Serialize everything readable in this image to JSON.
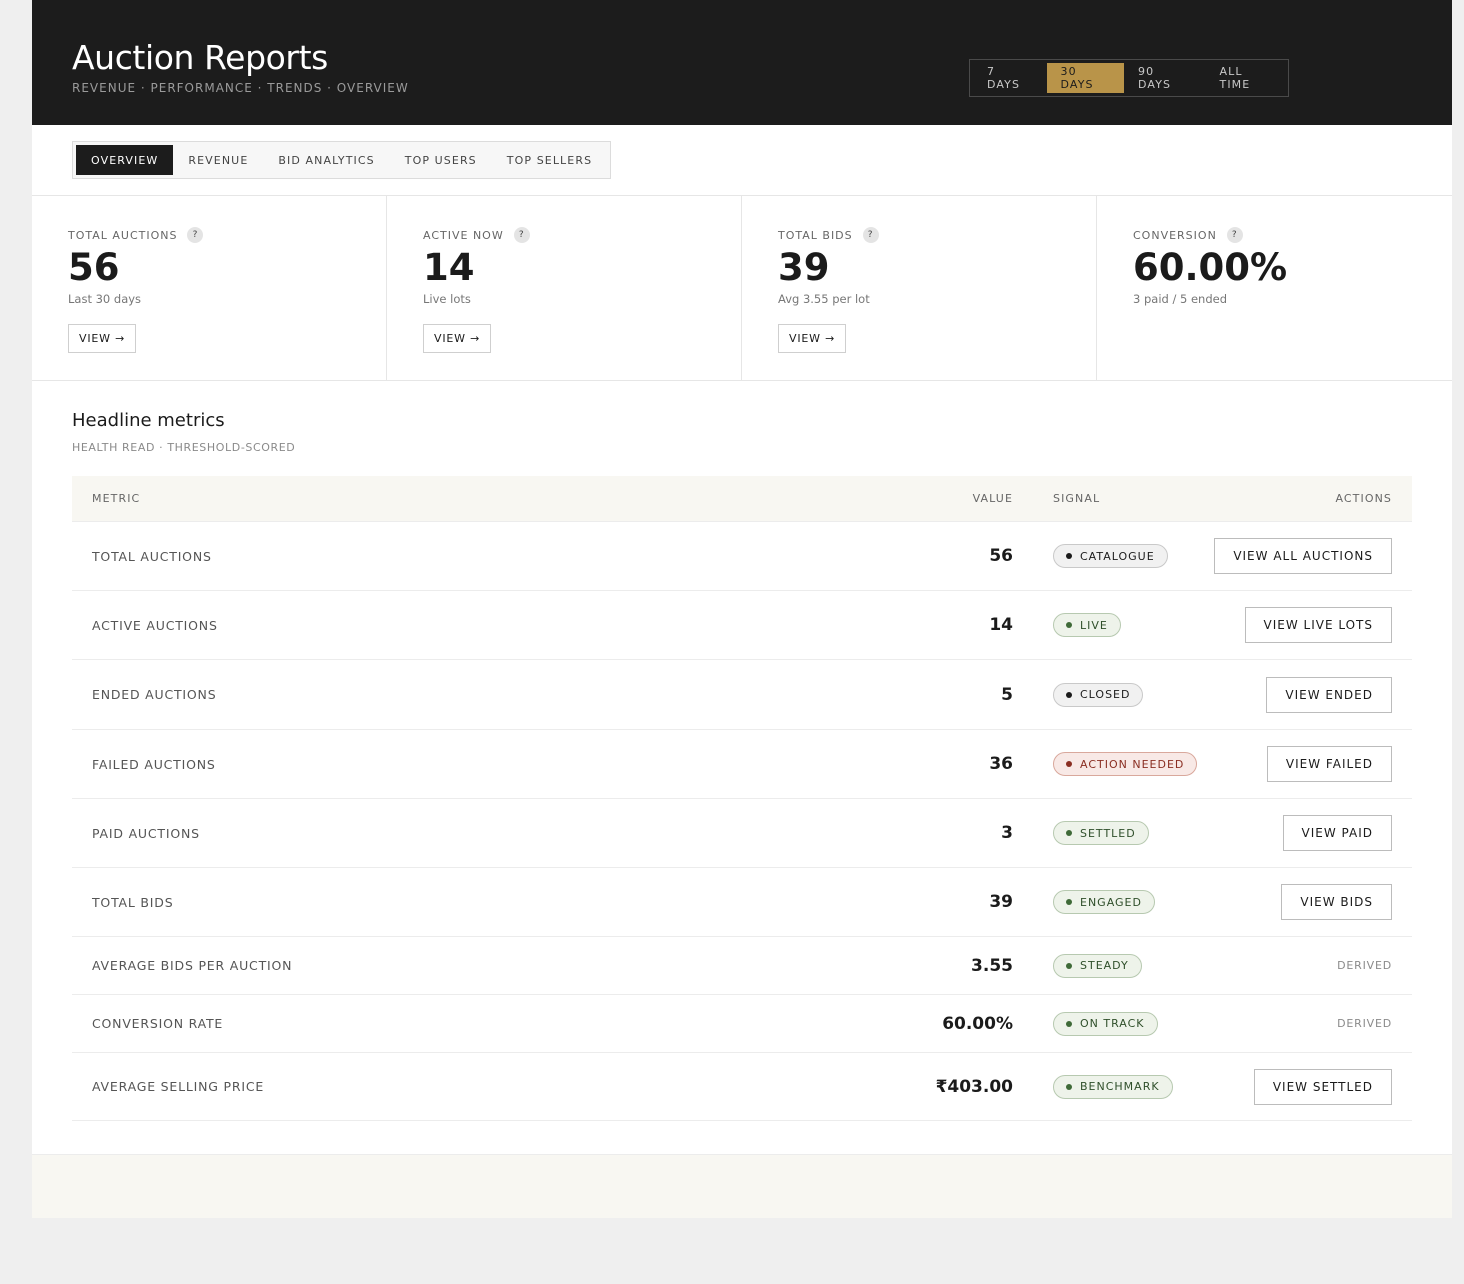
{
  "header": {
    "title": "Auction Reports",
    "subtitle": "REVENUE · PERFORMANCE · TRENDS · OVERVIEW",
    "ranges": [
      "7 DAYS",
      "30 DAYS",
      "90 DAYS",
      "ALL TIME"
    ],
    "active_range": "30 DAYS"
  },
  "tabs": [
    "OVERVIEW",
    "REVENUE",
    "BID ANALYTICS",
    "TOP USERS",
    "TOP SELLERS"
  ],
  "active_tab": "OVERVIEW",
  "stats": [
    {
      "label": "TOTAL AUCTIONS",
      "value": "56",
      "caption": "Last 30 days",
      "button": "VIEW →"
    },
    {
      "label": "ACTIVE NOW",
      "value": "14",
      "caption": "Live lots",
      "button": "VIEW →"
    },
    {
      "label": "TOTAL BIDS",
      "value": "39",
      "caption": "Avg 3.55 per lot",
      "button": "VIEW →"
    },
    {
      "label": "CONVERSION",
      "value": "60.00%",
      "caption": "3 paid / 5 ended",
      "button": ""
    }
  ],
  "section": {
    "title": "Headline metrics",
    "subtitle": "HEALTH READ · THRESHOLD-SCORED"
  },
  "table": {
    "headers": {
      "metric": "METRIC",
      "value": "VALUE",
      "signal": "SIGNAL",
      "actions": "ACTIONS"
    },
    "rows": [
      {
        "metric": "TOTAL AUCTIONS",
        "value": "56",
        "signal": "CATALOGUE",
        "tone": "neutral",
        "action": "VIEW ALL AUCTIONS",
        "action_type": "button"
      },
      {
        "metric": "ACTIVE AUCTIONS",
        "value": "14",
        "signal": "LIVE",
        "tone": "good",
        "action": "VIEW LIVE LOTS",
        "action_type": "button"
      },
      {
        "metric": "ENDED AUCTIONS",
        "value": "5",
        "signal": "CLOSED",
        "tone": "neutral",
        "action": "VIEW ENDED",
        "action_type": "button"
      },
      {
        "metric": "FAILED AUCTIONS",
        "value": "36",
        "signal": "ACTION NEEDED",
        "tone": "bad",
        "action": "VIEW FAILED",
        "action_type": "button"
      },
      {
        "metric": "PAID AUCTIONS",
        "value": "3",
        "signal": "SETTLED",
        "tone": "good",
        "action": "VIEW PAID",
        "action_type": "button"
      },
      {
        "metric": "TOTAL BIDS",
        "value": "39",
        "signal": "ENGAGED",
        "tone": "good",
        "action": "VIEW BIDS",
        "action_type": "button"
      },
      {
        "metric": "AVERAGE BIDS PER AUCTION",
        "value": "3.55",
        "signal": "STEADY",
        "tone": "good",
        "action": "DERIVED",
        "action_type": "text"
      },
      {
        "metric": "CONVERSION RATE",
        "value": "60.00%",
        "signal": "ON TRACK",
        "tone": "good",
        "action": "DERIVED",
        "action_type": "text"
      },
      {
        "metric": "AVERAGE SELLING PRICE",
        "value": "₹403.00",
        "signal": "BENCHMARK",
        "tone": "good",
        "action": "VIEW SETTLED",
        "action_type": "button"
      }
    ]
  },
  "colors": {
    "header_bg": "#1c1c1c",
    "accent": "#b99449",
    "neutral_badge_bg": "#f1f1f1",
    "neutral_badge_border": "#c9c9c9",
    "neutral_dot": "#1b1b1b",
    "good_badge_bg": "#eef3ea",
    "good_badge_border": "#b7c9b0",
    "good_dot": "#3f6a38",
    "good_text": "#2f4f2a",
    "bad_badge_bg": "#f8e9e6",
    "bad_badge_border": "#d9a89c",
    "bad_dot": "#8a2e22",
    "bad_text": "#8a2e22"
  }
}
